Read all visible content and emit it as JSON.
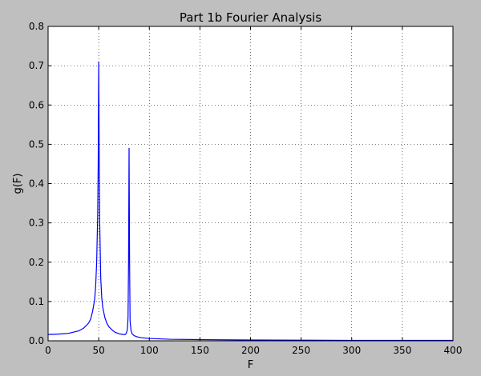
{
  "chart_data": {
    "type": "line",
    "title": "Part 1b Fourier Analysis",
    "xlabel": "F",
    "ylabel": "g(F)",
    "xlim": [
      0,
      400
    ],
    "ylim": [
      0,
      0.8
    ],
    "xticks": [
      0,
      50,
      100,
      150,
      200,
      250,
      300,
      350,
      400
    ],
    "xtick_labels": [
      "0",
      "50",
      "100",
      "150",
      "200",
      "250",
      "300",
      "350",
      "400"
    ],
    "yticks": [
      0.0,
      0.1,
      0.2,
      0.3,
      0.4,
      0.5,
      0.6,
      0.7,
      0.8
    ],
    "ytick_labels": [
      "0.0",
      "0.1",
      "0.2",
      "0.3",
      "0.4",
      "0.5",
      "0.6",
      "0.7",
      "0.8"
    ],
    "grid": true,
    "legend": false,
    "line_color": "#0000ff",
    "background_color": "#bfbfbf",
    "plot_background": "#ffffff",
    "series": [
      {
        "x": [
          0,
          10,
          20,
          30,
          35,
          40,
          42,
          44,
          46,
          47,
          48,
          49,
          49.5,
          50,
          50.5,
          51,
          52,
          53,
          54,
          56,
          58,
          60,
          63,
          66,
          70,
          74,
          76,
          77,
          78,
          78.5,
          79,
          79.5,
          80,
          80.5,
          81,
          82,
          83,
          85,
          88,
          92,
          100,
          120,
          150,
          200,
          250,
          300,
          350,
          400
        ],
        "y": [
          0.016,
          0.017,
          0.019,
          0.025,
          0.032,
          0.045,
          0.055,
          0.075,
          0.105,
          0.14,
          0.2,
          0.32,
          0.45,
          0.71,
          0.45,
          0.3,
          0.16,
          0.11,
          0.085,
          0.06,
          0.045,
          0.036,
          0.028,
          0.022,
          0.018,
          0.016,
          0.016,
          0.018,
          0.025,
          0.035,
          0.06,
          0.2,
          0.49,
          0.2,
          0.05,
          0.025,
          0.018,
          0.013,
          0.01,
          0.008,
          0.006,
          0.004,
          0.003,
          0.002,
          0.0015,
          0.001,
          0.001,
          0.001
        ]
      }
    ]
  }
}
